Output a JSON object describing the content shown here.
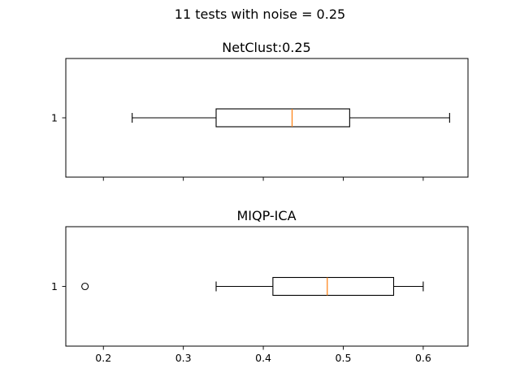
{
  "figure": {
    "suptitle": "11 tests with noise = 0.25"
  },
  "chart_data": [
    {
      "type": "box",
      "orientation": "horizontal",
      "title": "NetClust:0.25",
      "ytick_labels": [
        "1"
      ],
      "xlim": [
        0.153,
        0.656
      ],
      "xticks": [
        0.2,
        0.3,
        0.4,
        0.5,
        0.6
      ],
      "xtick_labels_visible": false,
      "boxes": [
        {
          "label": "1",
          "whisker_low": 0.236,
          "q1": 0.341,
          "median": 0.436,
          "q3": 0.508,
          "whisker_high": 0.633,
          "outliers": []
        }
      ],
      "colors": {
        "box": "#000000",
        "median": "#ff7f0e"
      }
    },
    {
      "type": "box",
      "orientation": "horizontal",
      "title": "MIQP-ICA",
      "ytick_labels": [
        "1"
      ],
      "xlim": [
        0.153,
        0.656
      ],
      "xticks": [
        0.2,
        0.3,
        0.4,
        0.5,
        0.6
      ],
      "xtick_labels": [
        "0.2",
        "0.3",
        "0.4",
        "0.5",
        "0.6"
      ],
      "xtick_labels_visible": true,
      "boxes": [
        {
          "label": "1",
          "whisker_low": 0.341,
          "q1": 0.412,
          "median": 0.48,
          "q3": 0.563,
          "whisker_high": 0.6,
          "outliers": [
            0.177
          ]
        }
      ],
      "colors": {
        "box": "#000000",
        "median": "#ff7f0e"
      }
    }
  ]
}
